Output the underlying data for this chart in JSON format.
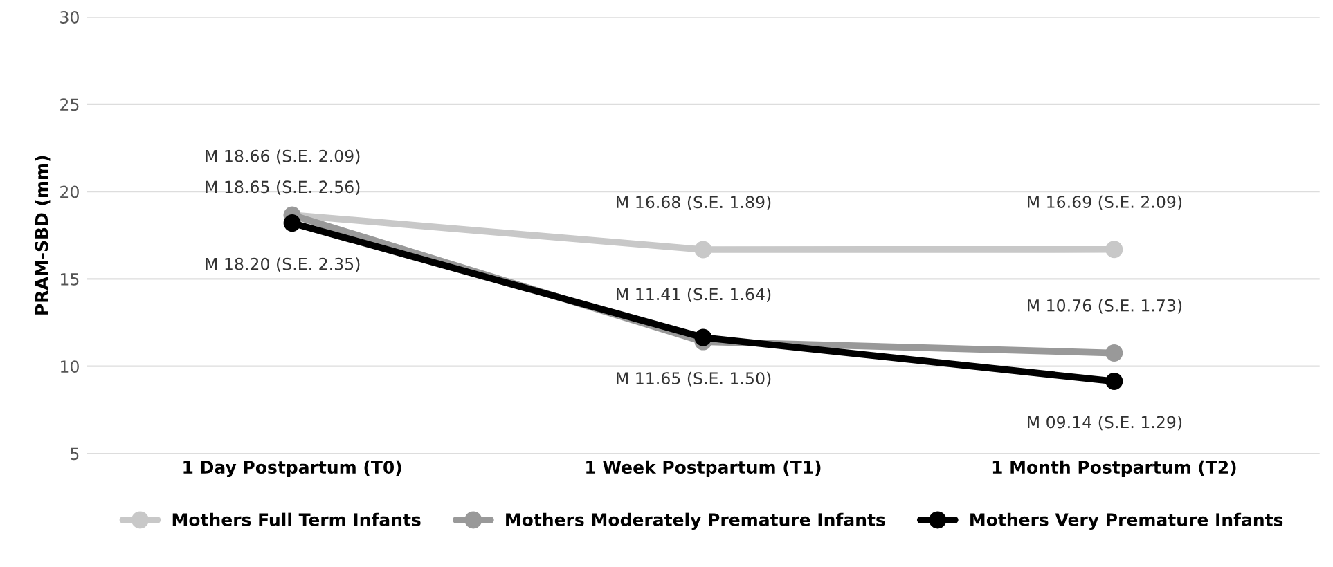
{
  "chart_data": {
    "type": "line",
    "ylabel": "PRAM-SBD (mm)",
    "categories": [
      "1 Day Postpartum (T0)",
      "1 Week Postpartum (T1)",
      "1 Month Postpartum (T2)"
    ],
    "series": [
      {
        "name": "Mothers Full Term Infants",
        "color": "#c8c8c8",
        "values": [
          18.66,
          16.68,
          16.69
        ],
        "value_labels": [
          "M 18.66 (S.E. 2.09)",
          "M 16.68 (S.E. 1.89)",
          "M 16.69 (S.E. 2.09)"
        ]
      },
      {
        "name": "Mothers Moderately Premature Infants",
        "color": "#999999",
        "values": [
          18.65,
          11.41,
          10.76
        ],
        "value_labels": [
          "M 18.65 (S.E. 2.56)",
          "M 11.41 (S.E. 1.64)",
          "M 10.76 (S.E. 1.73)"
        ]
      },
      {
        "name": "Mothers Very Premature Infants",
        "color": "#000000",
        "values": [
          18.2,
          11.65,
          9.14
        ],
        "value_labels": [
          "M 18.20 (S.E. 2.35)",
          "M 11.65 (S.E. 1.50)",
          "M 09.14 (S.E. 1.29)"
        ]
      }
    ],
    "ylim": [
      5,
      30
    ],
    "yticks": [
      5,
      10,
      15,
      20,
      25,
      30
    ],
    "grid": "y",
    "legend": "bottom",
    "marker": "circle",
    "line_style": "solid"
  }
}
